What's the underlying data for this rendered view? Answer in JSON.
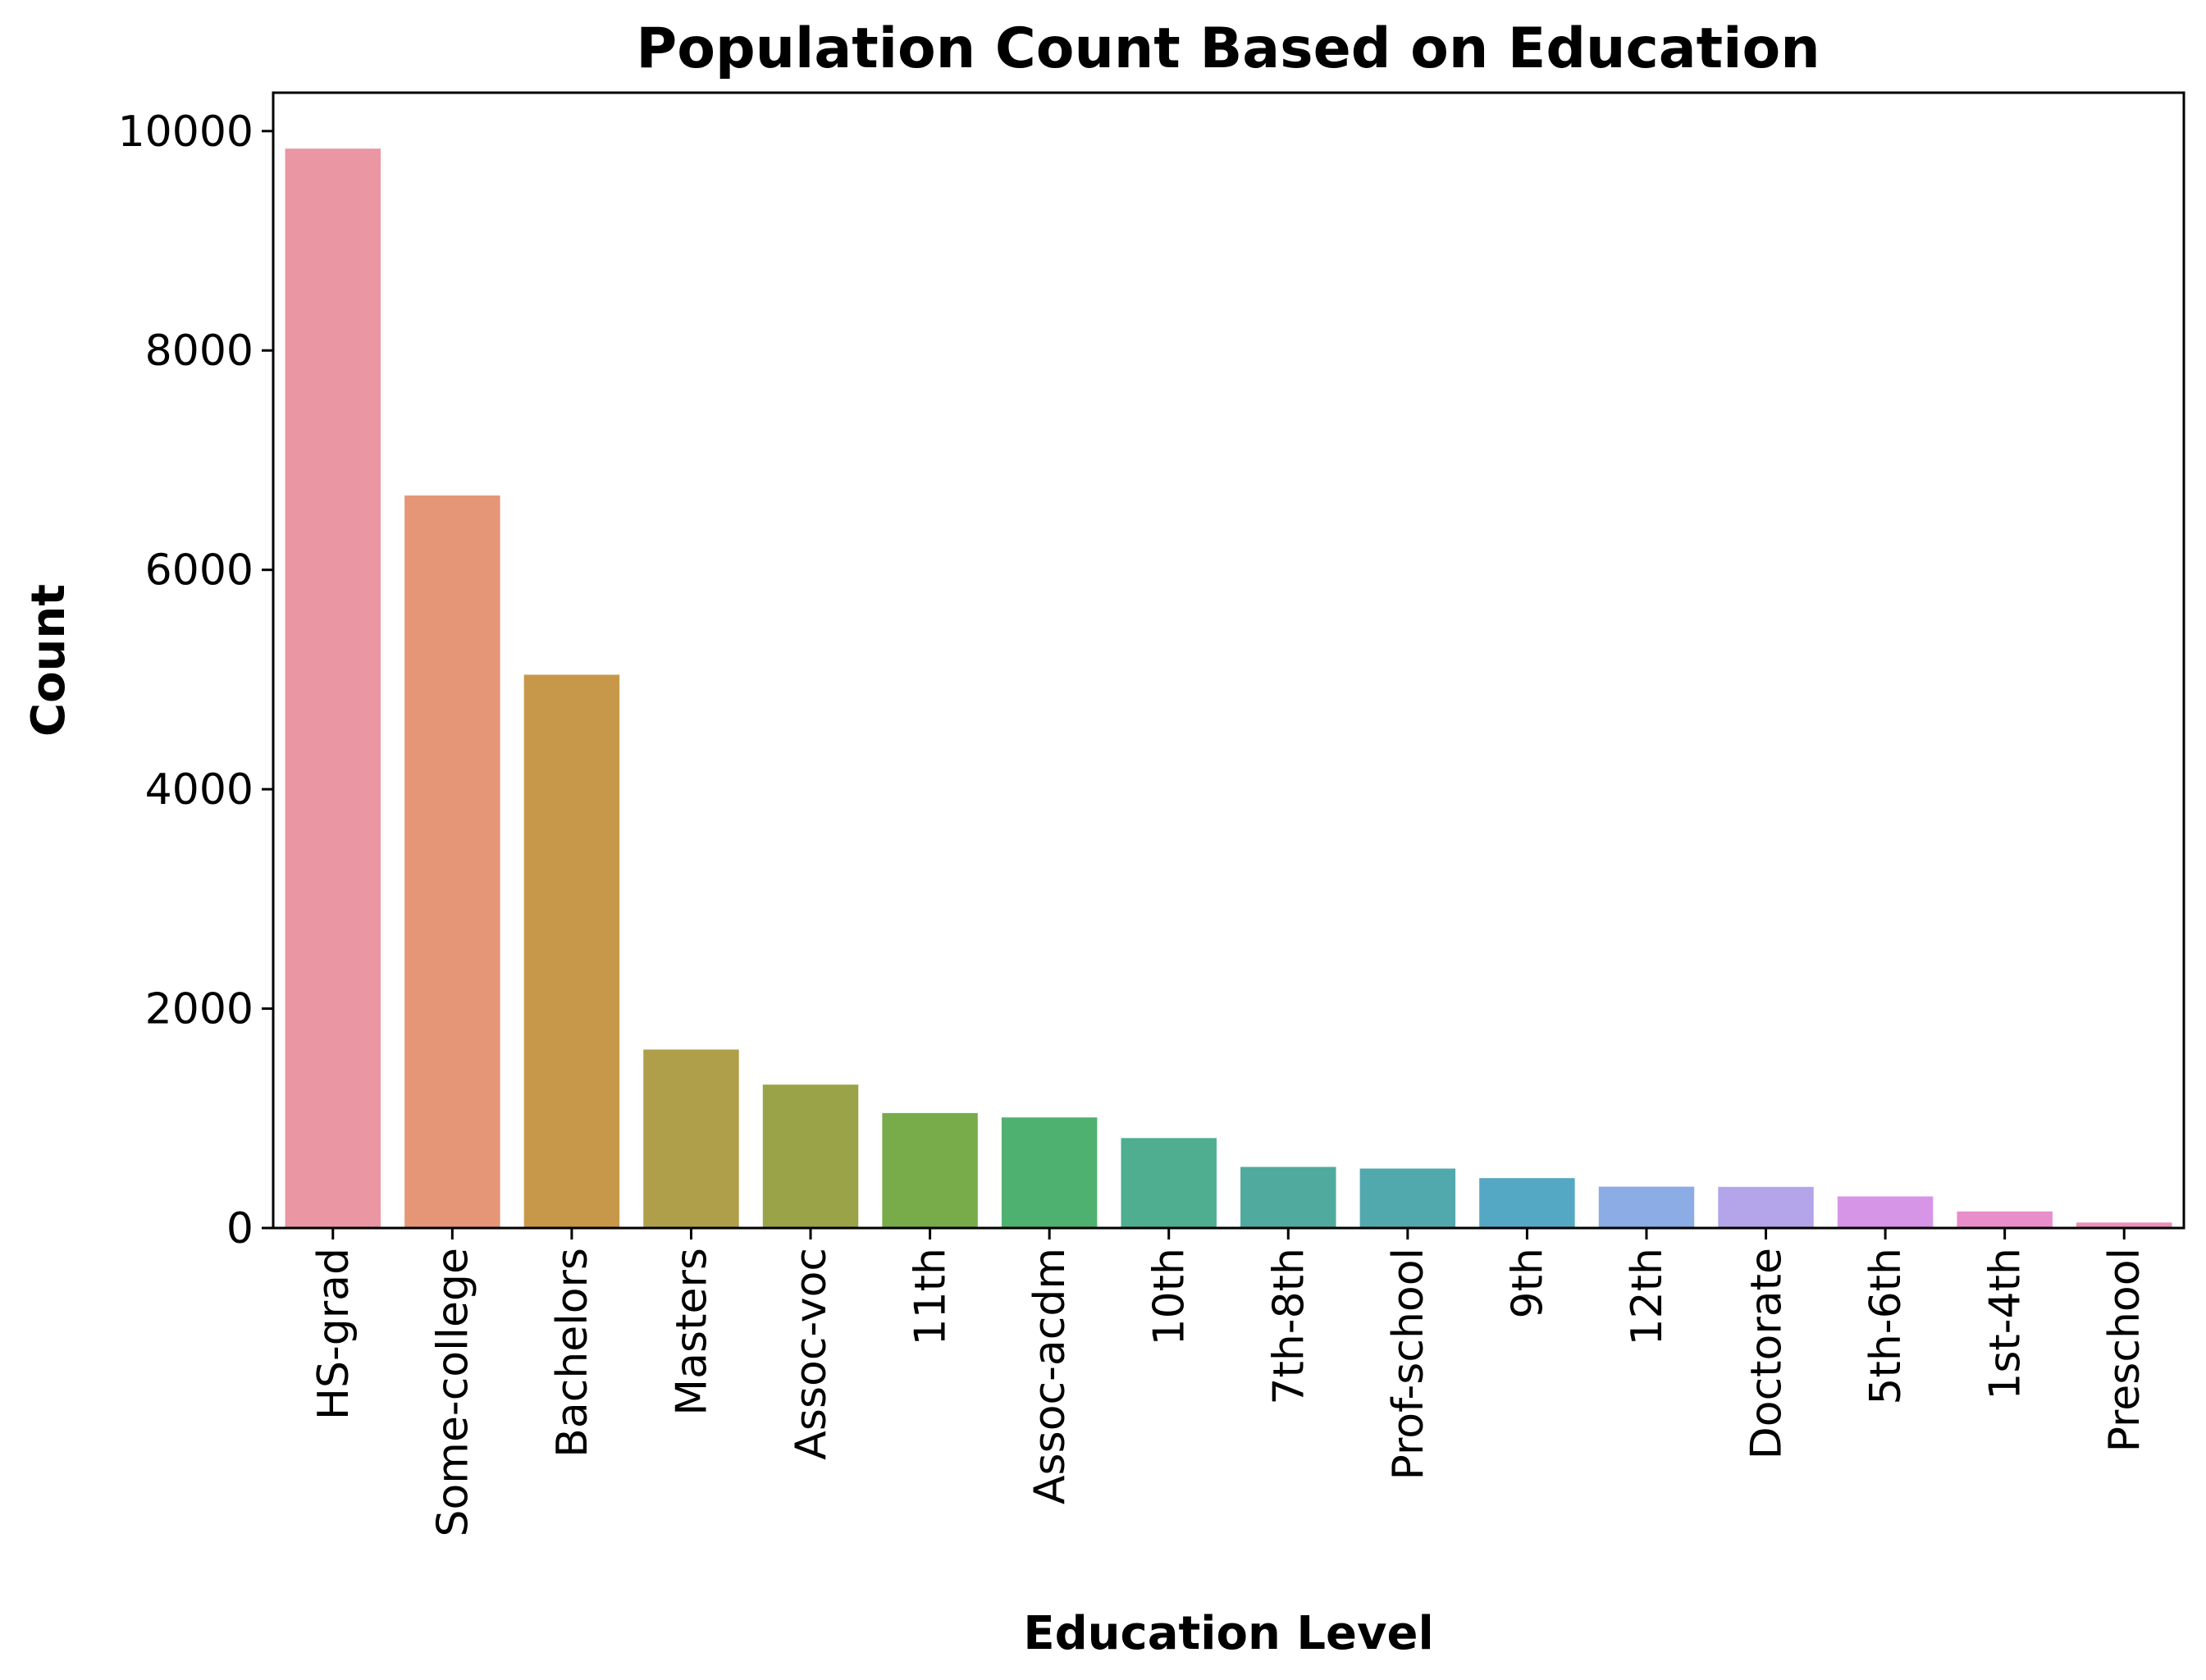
{
  "chart_data": {
    "type": "bar",
    "title": "Population Count Based on Education",
    "xlabel": "Education Level",
    "ylabel": "Count",
    "ylim": [
      0,
      10350
    ],
    "yticks": [
      0,
      2000,
      4000,
      6000,
      8000,
      10000
    ],
    "ytick_labels": [
      "0",
      "2000",
      "4000",
      "6000",
      "8000",
      "10000"
    ],
    "grid": false,
    "legend": "none",
    "categories": [
      "HS-grad",
      "Some-college",
      "Bachelors",
      "Masters",
      "Assoc-voc",
      "11th",
      "Assoc-acdm",
      "10th",
      "7th-8th",
      "Prof-school",
      "9th",
      "12th",
      "Doctorate",
      "5th-6th",
      "1st-4th",
      "Preschool"
    ],
    "values": [
      9840,
      6678,
      5044,
      1627,
      1307,
      1048,
      1008,
      820,
      557,
      542,
      455,
      377,
      375,
      288,
      151,
      50
    ],
    "colors": [
      "#ea96a3",
      "#e59677",
      "#c8984a",
      "#b09f4a",
      "#9aa347",
      "#78ab4a",
      "#4fb16f",
      "#4eae8f",
      "#50ab9e",
      "#52a9ad",
      "#55a8c4",
      "#8cace5",
      "#b4a4e9",
      "#d795e8",
      "#e88ecb",
      "#ea8fb9"
    ]
  }
}
